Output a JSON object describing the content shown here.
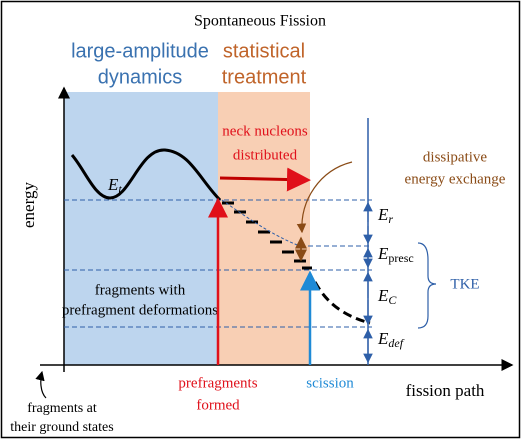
{
  "title": "Spontaneous Fission",
  "regions": {
    "dynamics": [
      "large-amplitude",
      "dynamics"
    ],
    "statistical": [
      "statistical",
      "treatment"
    ]
  },
  "axes": {
    "y": "energy",
    "x": "fission path"
  },
  "labels": {
    "et": "E",
    "et_sub": "t",
    "neck": [
      "neck nucleons",
      "distributed"
    ],
    "dissipative": [
      "dissipative",
      "energy exchange"
    ],
    "fragments_deform": [
      "fragments with",
      "prefragment deformations"
    ],
    "prefragments": [
      "prefragments",
      "formed"
    ],
    "scission": "scission",
    "ground": [
      "fragments at",
      "their ground states"
    ],
    "tke": "TKE"
  },
  "energies": [
    {
      "main": "E",
      "sub": "r"
    },
    {
      "main": "E",
      "sub": "presc"
    },
    {
      "main": "E",
      "sub": "C"
    },
    {
      "main": "E",
      "sub": "def"
    }
  ]
}
